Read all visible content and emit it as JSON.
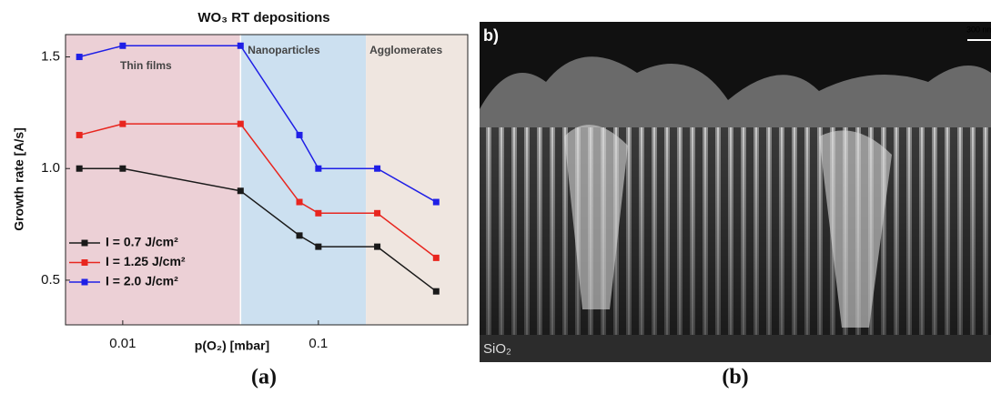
{
  "chart_data": {
    "type": "line",
    "title": "WO₃ RT depositions",
    "x_label": "p(O₂) [mbar]",
    "y_label": "Growth rate [A/s]",
    "xscale": "log",
    "xlim": [
      0.0051,
      0.58
    ],
    "ylim": [
      0.3,
      1.6
    ],
    "xticks": [
      0.01,
      0.1
    ],
    "yticks": [
      0.5,
      {
        "value": 1,
        "label": "1.0"
      },
      1.5
    ],
    "x": [
      0.006,
      0.01,
      0.04,
      0.08,
      0.1,
      0.2,
      0.4
    ],
    "series": [
      {
        "name": "I = 0.7 J/cm²",
        "color": "#1a1a1a",
        "values": [
          1.0,
          1.0,
          0.9,
          0.7,
          0.65,
          0.65,
          0.45
        ]
      },
      {
        "name": "I = 1.25 J/cm²",
        "color": "#e8261f",
        "values": [
          1.15,
          1.2,
          1.2,
          0.85,
          0.8,
          0.8,
          0.6
        ]
      },
      {
        "name": "I = 2.0 J/cm²",
        "color": "#1f1fe6",
        "values": [
          1.5,
          1.55,
          1.55,
          1.15,
          1.0,
          1.0,
          0.85
        ]
      }
    ],
    "regions": [
      {
        "name": "Thin films",
        "xrange": [
          0.0051,
          0.04
        ],
        "color": "#ecd0d6"
      },
      {
        "name": "Nanoparticles",
        "xrange": [
          0.04,
          0.175
        ],
        "color": "#cce0f0"
      },
      {
        "name": "Agglomerates",
        "xrange": [
          0.175,
          0.58
        ],
        "color": "#efe6e0"
      }
    ],
    "legend": "lower left"
  },
  "image": {
    "label": "b)",
    "scale_bar": "300 nm",
    "substrate": "SiO₂"
  },
  "captions": [
    "(a)",
    "(b)"
  ]
}
